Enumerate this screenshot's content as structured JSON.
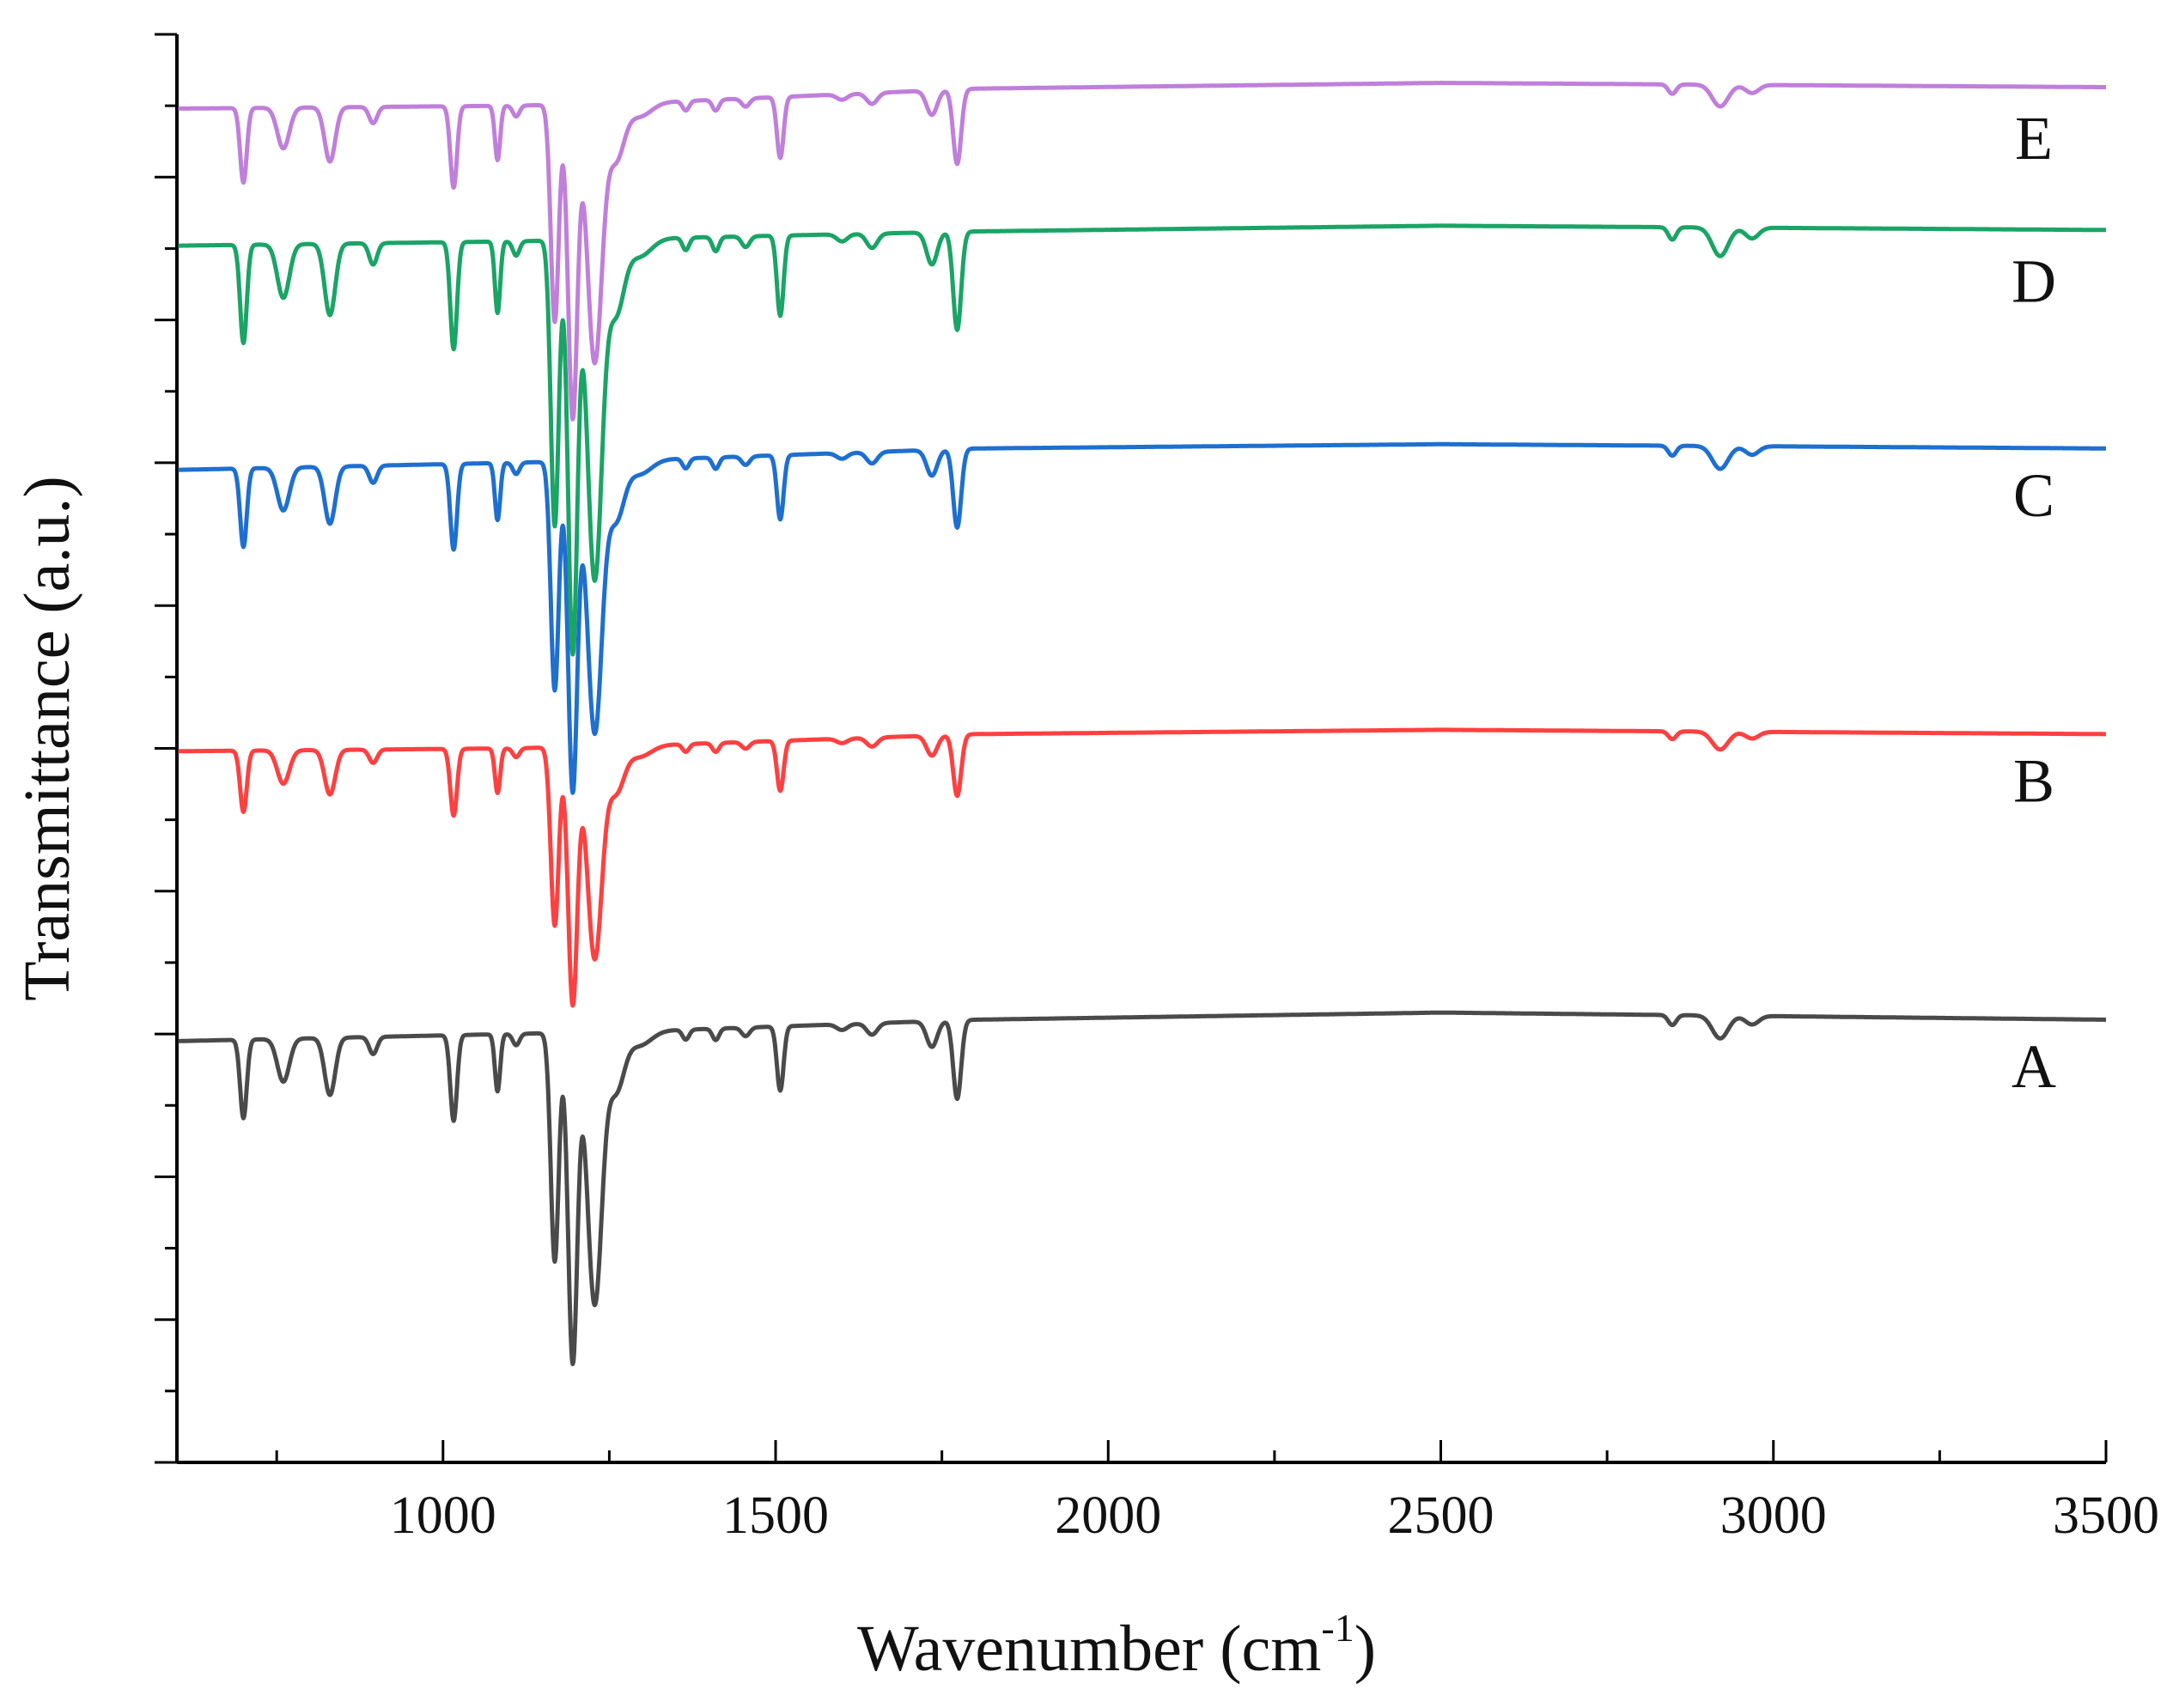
{
  "chart_data": {
    "type": "line",
    "title": "",
    "xlabel": "Wavenumber (cm",
    "xlabel_sup": "-1",
    "xlabel_close": ")",
    "ylabel": "Transmittance (a.u.)",
    "xlim": [
      600,
      3500
    ],
    "ylim": [
      0,
      10
    ],
    "x_ticks": [
      1000,
      1500,
      2000,
      2500,
      3000,
      3500
    ],
    "x_tick_labels": [
      "1000",
      "1500",
      "2000",
      "2500",
      "3000",
      "3500"
    ],
    "y_ticks_unlabeled": true,
    "grid": false,
    "legend": "none",
    "peaks": [
      {
        "x": 700,
        "d": 0.55,
        "w": 5
      },
      {
        "x": 760,
        "d": 0.3,
        "w": 9
      },
      {
        "x": 830,
        "d": 0.4,
        "w": 8
      },
      {
        "x": 895,
        "d": 0.12,
        "w": 6
      },
      {
        "x": 1016,
        "d": 0.6,
        "w": 5
      },
      {
        "x": 1082,
        "d": 0.4,
        "w": 4
      },
      {
        "x": 1110,
        "d": 0.08,
        "w": 5
      },
      {
        "x": 1168,
        "d": 1.6,
        "w": 6
      },
      {
        "x": 1195,
        "d": 2.3,
        "w": 7
      },
      {
        "x": 1228,
        "d": 1.9,
        "w": 11
      },
      {
        "x": 1260,
        "d": 0.4,
        "w": 12
      },
      {
        "x": 1295,
        "d": 0.1,
        "w": 18
      },
      {
        "x": 1365,
        "d": 0.07,
        "w": 5
      },
      {
        "x": 1410,
        "d": 0.08,
        "w": 5
      },
      {
        "x": 1455,
        "d": 0.06,
        "w": 6
      },
      {
        "x": 1507,
        "d": 0.45,
        "w": 5
      },
      {
        "x": 1600,
        "d": 0.04,
        "w": 8
      },
      {
        "x": 1645,
        "d": 0.08,
        "w": 8
      },
      {
        "x": 1735,
        "d": 0.18,
        "w": 8
      },
      {
        "x": 1773,
        "d": 0.55,
        "w": 6
      },
      {
        "x": 2848,
        "d": 0.07,
        "w": 6
      },
      {
        "x": 2920,
        "d": 0.16,
        "w": 12
      },
      {
        "x": 2968,
        "d": 0.06,
        "w": 10
      }
    ],
    "series": [
      {
        "name": "A",
        "label": "A",
        "color": "#4a4a4a",
        "baseline": 3.0,
        "scale": 1.0,
        "x": [
          600,
          1100,
          1300,
          1800,
          2500,
          3500
        ],
        "y": [
          2.95,
          3.0,
          3.02,
          3.1,
          3.15,
          3.1
        ]
      },
      {
        "name": "B",
        "label": "B",
        "color": "#ff4040",
        "baseline": 5.0,
        "scale": 0.78,
        "x": [
          600,
          1100,
          1300,
          1800,
          2500,
          3500
        ],
        "y": [
          4.98,
          5.0,
          5.02,
          5.1,
          5.13,
          5.1
        ]
      },
      {
        "name": "C",
        "label": "C",
        "color": "#1e6fd0",
        "baseline": 7.0,
        "scale": 1.0,
        "x": [
          600,
          1100,
          1300,
          1800,
          2500,
          3500
        ],
        "y": [
          6.95,
          7.0,
          7.02,
          7.1,
          7.13,
          7.1
        ]
      },
      {
        "name": "D",
        "label": "D",
        "color": "#1aa466",
        "baseline": 8.5,
        "scale": 1.25,
        "x": [
          600,
          1100,
          1300,
          1800,
          2500,
          3500
        ],
        "y": [
          8.52,
          8.55,
          8.57,
          8.62,
          8.66,
          8.63
        ]
      },
      {
        "name": "E",
        "label": "E",
        "color": "#c07fdb",
        "baseline": 9.5,
        "scale": 0.95,
        "x": [
          600,
          1100,
          1300,
          1800,
          2500,
          3500
        ],
        "y": [
          9.48,
          9.5,
          9.52,
          9.62,
          9.66,
          9.63
        ]
      }
    ]
  }
}
